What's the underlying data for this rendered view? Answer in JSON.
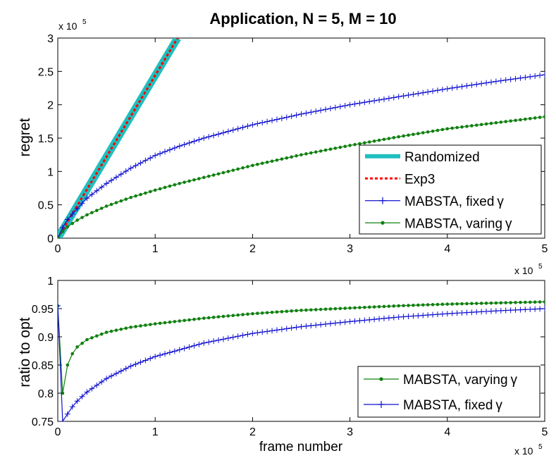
{
  "chart_data": [
    {
      "type": "line",
      "title": "Application, N = 5, M = 10",
      "xlabel": "",
      "ylabel": "regret",
      "x_exponent_label": "x 10",
      "x_exponent_power": "5",
      "y_exponent_label": "x 10",
      "y_exponent_power": "5",
      "xlim": [
        0,
        5
      ],
      "ylim": [
        0,
        3
      ],
      "xticks": [
        0,
        1,
        2,
        3,
        4,
        5
      ],
      "xtick_labels": [
        "0",
        "1",
        "2",
        "3",
        "4",
        "5"
      ],
      "yticks": [
        0,
        0.5,
        1,
        1.5,
        2,
        2.5,
        3
      ],
      "ytick_labels": [
        "0",
        "0.5",
        "1",
        "1.5",
        "2",
        "2.5",
        "3"
      ],
      "legend_position": "bottom-right",
      "series": [
        {
          "name": "Randomized",
          "color": "#1fbfbf",
          "style": "solid-thick",
          "marker": "none",
          "x": [
            0,
            1.23
          ],
          "y": [
            0,
            3.0
          ]
        },
        {
          "name": "Exp3",
          "color": "#ff0000",
          "style": "dotted",
          "marker": "none",
          "x": [
            0,
            1.23
          ],
          "y": [
            0,
            3.0
          ]
        },
        {
          "name": "MABSTA, fixed",
          "greek": "γ",
          "color": "#1010d0",
          "style": "solid",
          "marker": "plus",
          "x": [
            0,
            0.05,
            0.1,
            0.2,
            0.3,
            0.5,
            0.75,
            1.0,
            1.25,
            1.5,
            2.0,
            2.5,
            3.0,
            3.5,
            4.0,
            4.5,
            5.0
          ],
          "y": [
            0,
            0.16,
            0.28,
            0.44,
            0.6,
            0.82,
            1.05,
            1.24,
            1.38,
            1.5,
            1.7,
            1.86,
            2.0,
            2.12,
            2.24,
            2.35,
            2.45
          ]
        },
        {
          "name": "MABSTA, varing",
          "greek": "γ",
          "color": "#108010",
          "style": "solid",
          "marker": "dot",
          "x": [
            0,
            0.05,
            0.1,
            0.2,
            0.3,
            0.5,
            0.75,
            1.0,
            1.25,
            1.5,
            2.0,
            2.5,
            3.0,
            3.5,
            4.0,
            4.5,
            5.0
          ],
          "y": [
            0,
            0.1,
            0.17,
            0.27,
            0.35,
            0.48,
            0.61,
            0.72,
            0.82,
            0.91,
            1.09,
            1.25,
            1.39,
            1.52,
            1.64,
            1.73,
            1.82
          ]
        }
      ]
    },
    {
      "type": "line",
      "title": "",
      "xlabel": "frame number",
      "ylabel": "ratio to opt",
      "x_exponent_label": "x 10",
      "x_exponent_power": "5",
      "xlim": [
        0,
        5
      ],
      "ylim": [
        0.75,
        1
      ],
      "xticks": [
        0,
        1,
        2,
        3,
        4,
        5
      ],
      "xtick_labels": [
        "0",
        "1",
        "2",
        "3",
        "4",
        "5"
      ],
      "yticks": [
        0.75,
        0.8,
        0.85,
        0.9,
        0.95,
        1
      ],
      "ytick_labels": [
        "0.75",
        "0.8",
        "0.85",
        "0.9",
        "0.95",
        "1"
      ],
      "legend_position": "bottom-right",
      "series": [
        {
          "name": "MABSTA, varying",
          "greek": "γ",
          "color": "#108010",
          "style": "solid",
          "marker": "dot",
          "x": [
            0,
            0.05,
            0.1,
            0.15,
            0.2,
            0.3,
            0.5,
            0.75,
            1.0,
            1.5,
            2.0,
            2.5,
            3.0,
            3.5,
            4.0,
            4.5,
            5.0
          ],
          "y": [
            0.955,
            0.8,
            0.85,
            0.87,
            0.882,
            0.895,
            0.908,
            0.917,
            0.923,
            0.933,
            0.941,
            0.947,
            0.951,
            0.955,
            0.958,
            0.96,
            0.962
          ]
        },
        {
          "name": "MABSTA, fixed",
          "greek": "γ",
          "color": "#1010d0",
          "style": "solid",
          "marker": "plus",
          "x": [
            0,
            0.05,
            0.1,
            0.15,
            0.2,
            0.3,
            0.5,
            0.75,
            1.0,
            1.5,
            2.0,
            2.5,
            3.0,
            3.5,
            4.0,
            4.5,
            5.0
          ],
          "y": [
            0.955,
            0.75,
            0.763,
            0.776,
            0.786,
            0.802,
            0.826,
            0.848,
            0.865,
            0.889,
            0.906,
            0.918,
            0.927,
            0.935,
            0.941,
            0.946,
            0.95
          ]
        }
      ]
    }
  ]
}
